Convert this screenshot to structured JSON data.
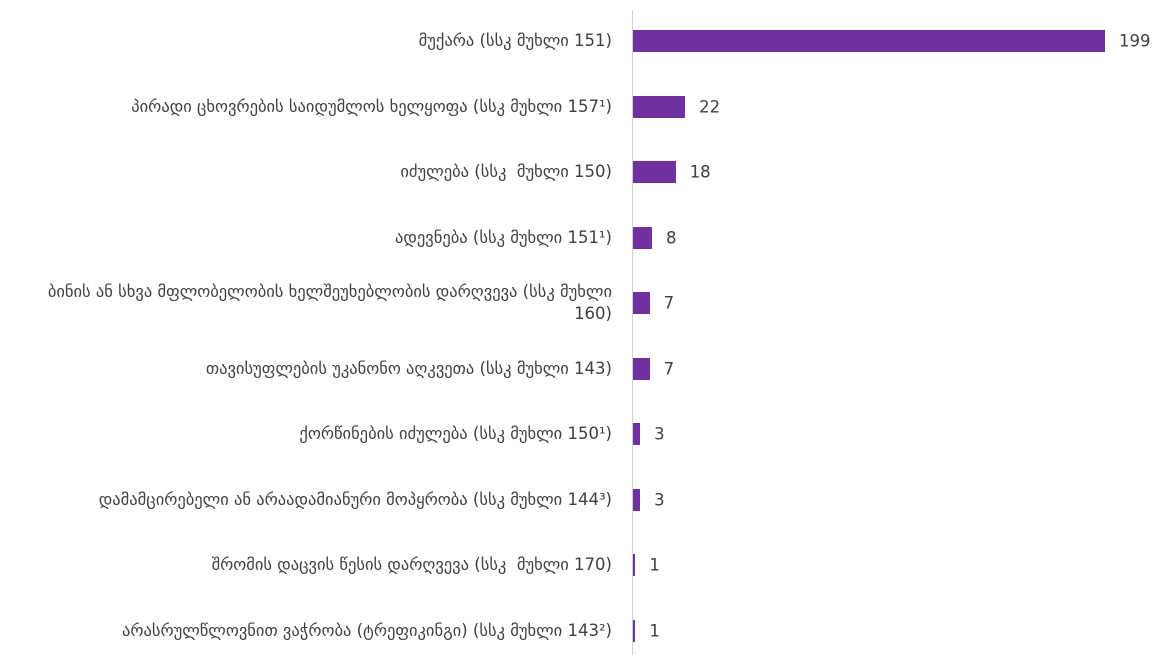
{
  "chart_data": {
    "type": "barh",
    "color": "#7030a0",
    "categories": [
      "მუქარა (სსკ მუხლი 151)",
      "პირადი ცხოვრების საიდუმლოს ხელყოფა (სსკ მუხლი 157¹)",
      "იძულება (სსკ  მუხლი 150)",
      "ადევნება (სსკ მუხლი 151¹)",
      "ბინის ან სხვა მფლობელობის ხელშეუხებლობის დარღვევა (სსკ მუხლი 160)",
      "თავისუფლების უკანონო აღკვეთა (სსკ მუხლი 143)",
      "ქორწინების იძულება (სსკ მუხლი 150¹)",
      "დამამცირებელი ან არაადამიანური მოპყრობა (სსკ მუხლი 144³)",
      "შრომის დაცვის წესის დარღვევა (სსკ  მუხლი 170)",
      "არასრულწლოვნით ვაჭრობა (ტრეფიკინგი) (სსკ მუხლი 143²)"
    ],
    "values": [
      199,
      22,
      18,
      8,
      7,
      7,
      3,
      3,
      1,
      1
    ]
  }
}
